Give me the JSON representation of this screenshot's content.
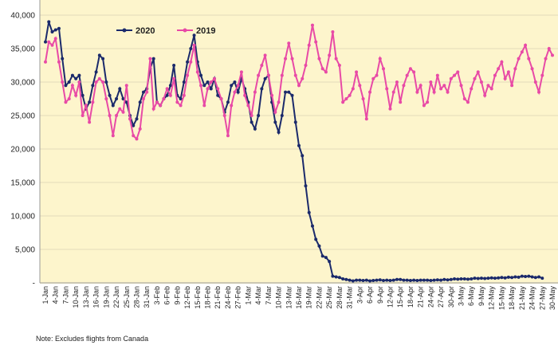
{
  "chart_data": {
    "type": "line",
    "note": "Note: Excludes flights from Canada",
    "categories": [
      "1-Jan",
      null,
      null,
      "4-Jan",
      null,
      null,
      "7-Jan",
      null,
      null,
      "10-Jan",
      null,
      null,
      "13-Jan",
      null,
      null,
      "16-Jan",
      null,
      null,
      "19-Jan",
      null,
      null,
      "22-Jan",
      null,
      null,
      "25-Jan",
      null,
      null,
      "28-Jan",
      null,
      null,
      "31-Jan",
      null,
      null,
      "3-Feb",
      null,
      null,
      "6-Feb",
      null,
      null,
      "9-Feb",
      null,
      null,
      "12-Feb",
      null,
      null,
      "15-Feb",
      null,
      null,
      "18-Feb",
      null,
      null,
      "21-Feb",
      null,
      null,
      "24-Feb",
      null,
      null,
      "27-Feb",
      null,
      null,
      "1-Mar",
      null,
      null,
      "4-Mar",
      null,
      null,
      "7-Mar",
      null,
      null,
      "10-Mar",
      null,
      null,
      "13-Mar",
      null,
      null,
      "16-Mar",
      null,
      null,
      "19-Mar",
      null,
      null,
      "22-Mar",
      null,
      null,
      "25-Mar",
      null,
      null,
      "28-Mar",
      null,
      null,
      "31-Mar",
      null,
      null,
      "3-Apr",
      null,
      null,
      "6-Apr",
      null,
      null,
      "9-Apr",
      null,
      null,
      "12-Apr",
      null,
      null,
      "15-Apr",
      null,
      null,
      "18-Apr",
      null,
      null,
      "21-Apr",
      null,
      null,
      "24-Apr",
      null,
      null,
      "27-Apr",
      null,
      null,
      "30-Apr",
      null,
      null,
      "3-May",
      null,
      null,
      "6-May",
      null,
      null,
      "9-May",
      null,
      null,
      "12-May",
      null,
      null,
      "15-May",
      null,
      null,
      "18-May",
      null,
      null,
      "21-May",
      null,
      null,
      "24-May",
      null,
      null,
      "27-May",
      null,
      null,
      "30-May"
    ],
    "series": [
      {
        "name": "2020",
        "color": "#1b2a6b",
        "values": [
          36000,
          39000,
          37500,
          37800,
          38000,
          33500,
          29500,
          30000,
          31000,
          30500,
          31000,
          28000,
          26000,
          27000,
          29500,
          31500,
          34000,
          33500,
          30000,
          28000,
          26500,
          27500,
          29000,
          27500,
          27000,
          25000,
          23500,
          24500,
          27000,
          28500,
          29000,
          32000,
          33500,
          27000,
          26500,
          27500,
          28000,
          29500,
          32500,
          28000,
          27500,
          30000,
          33000,
          35000,
          37000,
          33000,
          31000,
          29500,
          30000,
          29000,
          30500,
          28000,
          27500,
          25500,
          27000,
          29500,
          30000,
          28500,
          30500,
          29000,
          27000,
          24000,
          23000,
          25000,
          29000,
          30500,
          31000,
          27000,
          24000,
          22500,
          25000,
          28500,
          28500,
          28000,
          24000,
          20500,
          19000,
          14500,
          10500,
          8500,
          6500,
          5500,
          4000,
          3800,
          3200,
          1000,
          900,
          800,
          600,
          500,
          400,
          300,
          400,
          400,
          350,
          400,
          300,
          350,
          400,
          450,
          350,
          400,
          350,
          400,
          500,
          500,
          400,
          400,
          350,
          400,
          350,
          400,
          400,
          400,
          350,
          400,
          450,
          400,
          500,
          450,
          500,
          600,
          550,
          600,
          600,
          550,
          600,
          700,
          650,
          700,
          650,
          700,
          750,
          700,
          750,
          800,
          750,
          850,
          800,
          900,
          850,
          1000,
          950,
          1000,
          900,
          800,
          900,
          700,
          null,
          null,
          null
        ]
      },
      {
        "name": "2019",
        "color": "#e84aa6",
        "values": [
          33000,
          36000,
          35500,
          36500,
          33000,
          30000,
          27000,
          27500,
          29500,
          28000,
          30000,
          25000,
          26500,
          24000,
          27000,
          30000,
          30500,
          30000,
          27500,
          25000,
          22000,
          25000,
          26000,
          25500,
          29500,
          24500,
          22000,
          21500,
          23000,
          27500,
          28500,
          33500,
          26000,
          27000,
          26500,
          27500,
          29000,
          28000,
          30500,
          27000,
          26500,
          28000,
          31000,
          33000,
          35500,
          31500,
          29500,
          26500,
          29000,
          30000,
          30500,
          29000,
          27500,
          25000,
          22000,
          26500,
          28500,
          29500,
          31500,
          28000,
          26500,
          25000,
          28500,
          31000,
          32500,
          34000,
          31000,
          28000,
          25500,
          27000,
          31000,
          33500,
          35800,
          33500,
          31000,
          29500,
          30500,
          32500,
          35500,
          38500,
          36000,
          33500,
          32000,
          31500,
          34000,
          37500,
          33500,
          32500,
          27000,
          27500,
          28000,
          29000,
          31500,
          29500,
          27500,
          24500,
          28500,
          30500,
          31000,
          33500,
          32000,
          29000,
          26000,
          28500,
          30000,
          27000,
          29500,
          31000,
          32000,
          31500,
          28500,
          29500,
          26500,
          27000,
          30000,
          28500,
          31000,
          29000,
          29500,
          28500,
          30500,
          31000,
          31500,
          29500,
          27500,
          27000,
          29000,
          30500,
          31500,
          30000,
          28000,
          29500,
          29000,
          31000,
          32000,
          33000,
          30500,
          31500,
          29500,
          32000,
          33500,
          34500,
          35500,
          33500,
          32000,
          30000,
          28500,
          31000,
          33500,
          35000,
          34000
        ]
      }
    ],
    "ylim": [
      0,
      40000
    ],
    "yticks": [
      {
        "value": 0,
        "label": "-"
      },
      {
        "value": 5000,
        "label": "5,000"
      },
      {
        "value": 10000,
        "label": "10,000"
      },
      {
        "value": 15000,
        "label": "15,000"
      },
      {
        "value": 20000,
        "label": "20,000"
      },
      {
        "value": 25000,
        "label": "25,000"
      },
      {
        "value": 30000,
        "label": "30,000"
      },
      {
        "value": 35000,
        "label": "35,000"
      },
      {
        "value": 40000,
        "label": "40,000"
      }
    ],
    "grid": true
  }
}
